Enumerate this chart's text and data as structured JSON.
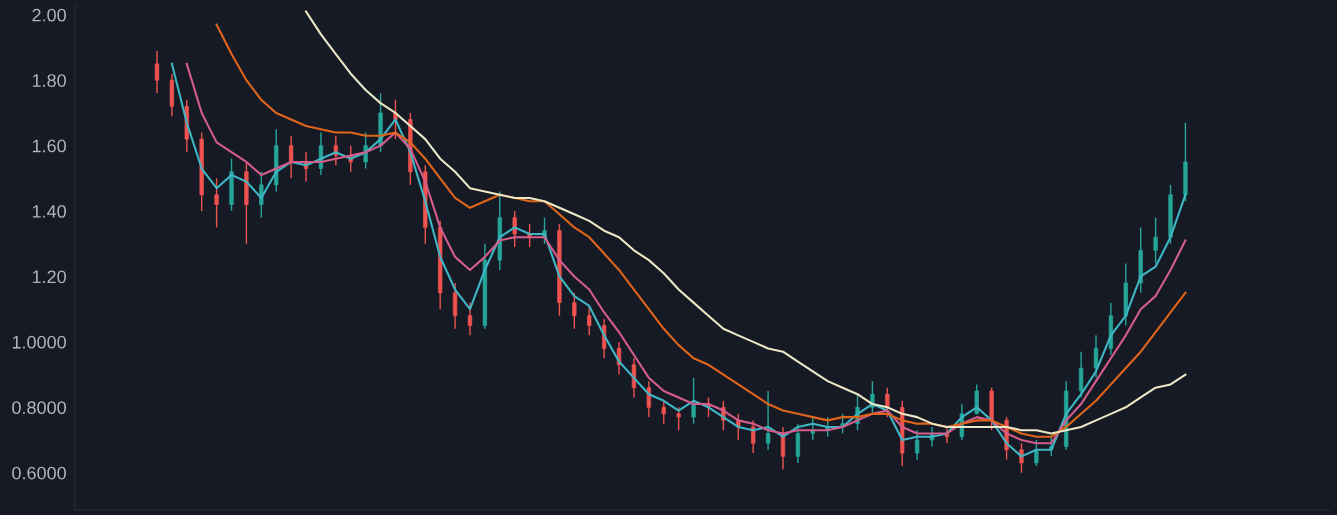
{
  "chart_data": {
    "type": "candlestick",
    "categories": [
      null,
      null,
      null,
      null,
      null,
      null,
      null,
      null,
      null,
      null,
      null,
      null,
      null,
      null,
      null,
      null,
      null,
      null,
      null,
      null,
      null,
      null,
      null,
      null,
      null,
      null,
      null,
      null,
      null,
      null,
      null,
      null,
      null,
      null,
      null,
      null,
      null,
      null,
      null,
      null,
      null,
      null,
      null,
      null,
      null,
      null,
      null,
      null,
      null,
      null,
      null,
      null,
      null,
      null,
      null,
      null,
      null,
      null,
      null,
      null,
      null,
      null,
      null,
      null,
      null,
      null,
      null,
      null,
      null,
      null
    ],
    "ohlc": [
      [
        1.85,
        1.89,
        1.76,
        1.8
      ],
      [
        1.8,
        1.82,
        1.69,
        1.72
      ],
      [
        1.72,
        1.74,
        1.58,
        1.62
      ],
      [
        1.62,
        1.64,
        1.4,
        1.45
      ],
      [
        1.45,
        1.5,
        1.35,
        1.42
      ],
      [
        1.42,
        1.56,
        1.4,
        1.52
      ],
      [
        1.52,
        1.55,
        1.3,
        1.42
      ],
      [
        1.42,
        1.52,
        1.38,
        1.48
      ],
      [
        1.48,
        1.65,
        1.46,
        1.6
      ],
      [
        1.6,
        1.63,
        1.5,
        1.55
      ],
      [
        1.55,
        1.58,
        1.49,
        1.53
      ],
      [
        1.53,
        1.64,
        1.51,
        1.6
      ],
      [
        1.6,
        1.63,
        1.54,
        1.57
      ],
      [
        1.57,
        1.6,
        1.52,
        1.55
      ],
      [
        1.55,
        1.64,
        1.53,
        1.6
      ],
      [
        1.6,
        1.76,
        1.58,
        1.7
      ],
      [
        1.7,
        1.74,
        1.62,
        1.68
      ],
      [
        1.68,
        1.7,
        1.48,
        1.52
      ],
      [
        1.52,
        1.54,
        1.3,
        1.35
      ],
      [
        1.35,
        1.37,
        1.1,
        1.15
      ],
      [
        1.15,
        1.18,
        1.04,
        1.08
      ],
      [
        1.08,
        1.12,
        1.02,
        1.05
      ],
      [
        1.05,
        1.3,
        1.04,
        1.25
      ],
      [
        1.25,
        1.46,
        1.22,
        1.38
      ],
      [
        1.38,
        1.4,
        1.29,
        1.33
      ],
      [
        1.33,
        1.36,
        1.29,
        1.32
      ],
      [
        1.32,
        1.38,
        1.3,
        1.34
      ],
      [
        1.34,
        1.36,
        1.08,
        1.12
      ],
      [
        1.12,
        1.15,
        1.04,
        1.08
      ],
      [
        1.08,
        1.11,
        1.02,
        1.05
      ],
      [
        1.05,
        1.07,
        0.95,
        0.98
      ],
      [
        0.98,
        1.0,
        0.9,
        0.93
      ],
      [
        0.93,
        0.95,
        0.83,
        0.86
      ],
      [
        0.86,
        0.88,
        0.77,
        0.8
      ],
      [
        0.8,
        0.82,
        0.75,
        0.78
      ],
      [
        0.78,
        0.8,
        0.73,
        0.77
      ],
      [
        0.77,
        0.89,
        0.75,
        0.81
      ],
      [
        0.81,
        0.83,
        0.77,
        0.8
      ],
      [
        0.8,
        0.82,
        0.73,
        0.76
      ],
      [
        0.76,
        0.78,
        0.7,
        0.74
      ],
      [
        0.74,
        0.76,
        0.66,
        0.69
      ],
      [
        0.69,
        0.85,
        0.67,
        0.72
      ],
      [
        0.72,
        0.74,
        0.61,
        0.65
      ],
      [
        0.65,
        0.75,
        0.63,
        0.72
      ],
      [
        0.72,
        0.77,
        0.7,
        0.73
      ],
      [
        0.73,
        0.77,
        0.71,
        0.74
      ],
      [
        0.74,
        0.78,
        0.72,
        0.75
      ],
      [
        0.75,
        0.84,
        0.73,
        0.8
      ],
      [
        0.8,
        0.88,
        0.78,
        0.84
      ],
      [
        0.84,
        0.86,
        0.77,
        0.8
      ],
      [
        0.8,
        0.82,
        0.62,
        0.66
      ],
      [
        0.66,
        0.73,
        0.64,
        0.7
      ],
      [
        0.7,
        0.74,
        0.68,
        0.72
      ],
      [
        0.72,
        0.74,
        0.69,
        0.71
      ],
      [
        0.71,
        0.81,
        0.7,
        0.78
      ],
      [
        0.78,
        0.87,
        0.78,
        0.85
      ],
      [
        0.85,
        0.86,
        0.73,
        0.76
      ],
      [
        0.76,
        0.77,
        0.64,
        0.67
      ],
      [
        0.67,
        0.69,
        0.6,
        0.63
      ],
      [
        0.63,
        0.7,
        0.62,
        0.67
      ],
      [
        0.67,
        0.71,
        0.65,
        0.68
      ],
      [
        0.68,
        0.88,
        0.67,
        0.85
      ],
      [
        0.85,
        0.97,
        0.83,
        0.92
      ],
      [
        0.92,
        1.02,
        0.89,
        0.98
      ],
      [
        0.98,
        1.12,
        0.96,
        1.08
      ],
      [
        1.08,
        1.24,
        1.05,
        1.18
      ],
      [
        1.18,
        1.35,
        1.15,
        1.28
      ],
      [
        1.28,
        1.38,
        1.24,
        1.32
      ],
      [
        1.32,
        1.48,
        1.3,
        1.45
      ],
      [
        1.45,
        1.67,
        1.43,
        1.55
      ]
    ],
    "colors": [
      "#ef5350",
      "#ef5350",
      "#ef5350",
      "#ef5350",
      "#ef5350",
      "#26a69a",
      "#ef5350",
      "#26a69a",
      "#26a69a",
      "#ef5350",
      "#ef5350",
      "#26a69a",
      "#ef5350",
      "#ef5350",
      "#26a69a",
      "#26a69a",
      "#ef5350",
      "#ef5350",
      "#ef5350",
      "#ef5350",
      "#ef5350",
      "#ef5350",
      "#26a69a",
      "#26a69a",
      "#ef5350",
      "#ef5350",
      "#26a69a",
      "#ef5350",
      "#ef5350",
      "#ef5350",
      "#ef5350",
      "#ef5350",
      "#ef5350",
      "#ef5350",
      "#ef5350",
      "#ef5350",
      "#26a69a",
      "#ef5350",
      "#ef5350",
      "#ef5350",
      "#ef5350",
      "#26a69a",
      "#ef5350",
      "#26a69a",
      "#26a69a",
      "#26a69a",
      "#26a69a",
      "#26a69a",
      "#26a69a",
      "#ef5350",
      "#ef5350",
      "#26a69a",
      "#26a69a",
      "#ef5350",
      "#26a69a",
      "#26a69a",
      "#ef5350",
      "#ef5350",
      "#ef5350",
      "#26a69a",
      "#26a69a",
      "#26a69a",
      "#26a69a",
      "#26a69a",
      "#26a69a",
      "#26a69a",
      "#26a69a",
      "#26a69a",
      "#26a69a",
      "#26a69a"
    ],
    "series": [
      {
        "type": "line",
        "color": "#3fb6c4",
        "values": [
          null,
          1.85,
          1.67,
          1.53,
          1.47,
          1.51,
          1.49,
          1.44,
          1.52,
          1.55,
          1.54,
          1.56,
          1.58,
          1.56,
          1.58,
          1.62,
          1.68,
          1.58,
          1.43,
          1.26,
          1.16,
          1.1,
          1.22,
          1.32,
          1.35,
          1.33,
          1.33,
          1.2,
          1.14,
          1.11,
          1.02,
          0.94,
          0.89,
          0.84,
          0.82,
          0.79,
          0.82,
          0.8,
          0.77,
          0.74,
          0.73,
          0.74,
          0.71,
          0.74,
          0.75,
          0.74,
          0.74,
          0.78,
          0.81,
          0.79,
          0.7,
          0.71,
          0.71,
          0.72,
          0.77,
          0.8,
          0.76,
          0.69,
          0.65,
          0.67,
          0.67,
          0.78,
          0.84,
          0.91,
          1.02,
          1.08,
          1.2,
          1.23,
          1.32,
          1.45
        ]
      },
      {
        "type": "line",
        "color": "#d45d8c",
        "values": [
          null,
          null,
          1.85,
          1.7,
          1.61,
          1.58,
          1.55,
          1.51,
          1.53,
          1.55,
          1.55,
          1.55,
          1.56,
          1.57,
          1.58,
          1.6,
          1.64,
          1.59,
          1.49,
          1.35,
          1.26,
          1.22,
          1.26,
          1.31,
          1.32,
          1.32,
          1.32,
          1.25,
          1.2,
          1.16,
          1.09,
          1.03,
          0.96,
          0.89,
          0.85,
          0.83,
          0.81,
          0.81,
          0.79,
          0.76,
          0.75,
          0.73,
          0.72,
          0.73,
          0.73,
          0.73,
          0.74,
          0.76,
          0.78,
          0.79,
          0.74,
          0.72,
          0.72,
          0.72,
          0.75,
          0.77,
          0.76,
          0.72,
          0.7,
          0.69,
          0.69,
          0.76,
          0.81,
          0.88,
          0.95,
          1.02,
          1.1,
          1.14,
          1.22,
          1.31
        ]
      },
      {
        "type": "line",
        "color": "#e0651a",
        "values": [
          null,
          null,
          null,
          null,
          1.97,
          1.88,
          1.8,
          1.74,
          1.7,
          1.68,
          1.66,
          1.65,
          1.64,
          1.64,
          1.63,
          1.63,
          1.64,
          1.61,
          1.56,
          1.5,
          1.44,
          1.41,
          1.43,
          1.45,
          1.44,
          1.43,
          1.43,
          1.39,
          1.35,
          1.32,
          1.27,
          1.22,
          1.16,
          1.1,
          1.04,
          0.99,
          0.95,
          0.93,
          0.9,
          0.87,
          0.84,
          0.81,
          0.79,
          0.78,
          0.77,
          0.76,
          0.77,
          0.77,
          0.78,
          0.78,
          0.76,
          0.75,
          0.75,
          0.74,
          0.75,
          0.76,
          0.76,
          0.74,
          0.72,
          0.71,
          0.71,
          0.74,
          0.78,
          0.82,
          0.87,
          0.92,
          0.97,
          1.03,
          1.09,
          1.15
        ]
      },
      {
        "type": "line",
        "color": "#ece7c4",
        "values": [
          null,
          null,
          null,
          null,
          null,
          null,
          null,
          null,
          null,
          null,
          2.01,
          1.94,
          1.88,
          1.82,
          1.77,
          1.73,
          1.7,
          1.66,
          1.62,
          1.56,
          1.52,
          1.47,
          1.46,
          1.45,
          1.44,
          1.44,
          1.43,
          1.41,
          1.39,
          1.37,
          1.34,
          1.32,
          1.28,
          1.25,
          1.21,
          1.16,
          1.12,
          1.08,
          1.04,
          1.02,
          1.0,
          0.98,
          0.97,
          0.94,
          0.91,
          0.88,
          0.86,
          0.84,
          0.81,
          0.8,
          0.78,
          0.77,
          0.75,
          0.74,
          0.74,
          0.74,
          0.74,
          0.74,
          0.73,
          0.73,
          0.72,
          0.73,
          0.74,
          0.76,
          0.78,
          0.8,
          0.83,
          0.86,
          0.87,
          0.9
        ]
      }
    ],
    "ylim": [
      0.486,
      2.03
    ],
    "yticks": [
      {
        "value": 0.6,
        "label": "0.6000"
      },
      {
        "value": 0.8,
        "label": "0.8000"
      },
      {
        "value": 1.0,
        "label": "1.0000"
      },
      {
        "value": 1.2,
        "label": "1.20"
      },
      {
        "value": 1.4,
        "label": "1.40"
      },
      {
        "value": 1.6,
        "label": "1.60"
      },
      {
        "value": 1.8,
        "label": "1.80"
      },
      {
        "value": 2.0,
        "label": "2.00"
      }
    ],
    "tick_labels": "y",
    "line_style": "solid"
  }
}
